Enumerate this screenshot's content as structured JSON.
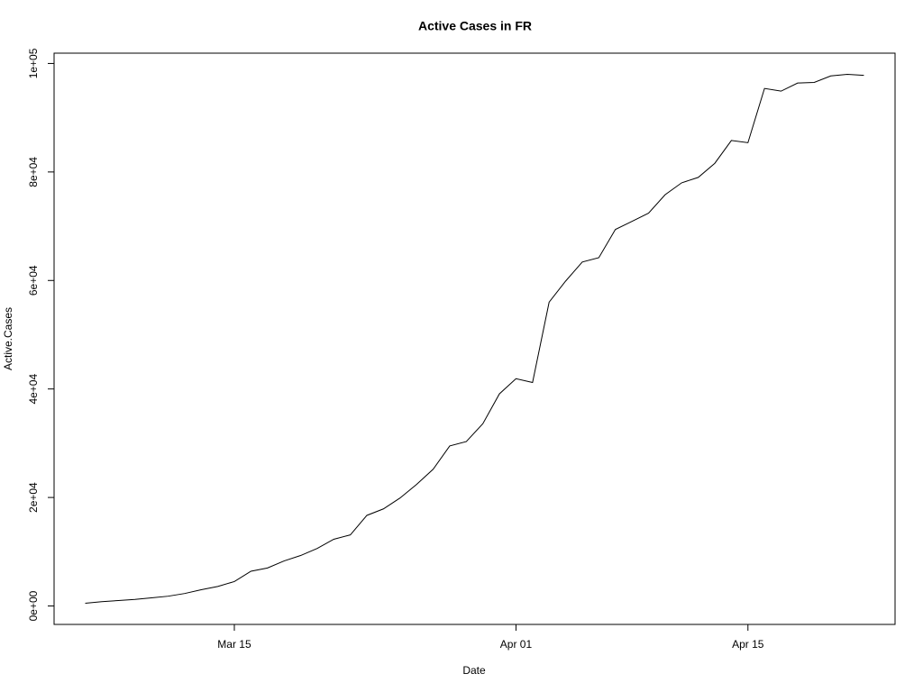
{
  "chart_data": {
    "type": "line",
    "title": "Active Cases in FR",
    "xlabel": "Date",
    "ylabel": "Active.Cases",
    "x": [
      "Mar 06",
      "Mar 07",
      "Mar 08",
      "Mar 09",
      "Mar 10",
      "Mar 11",
      "Mar 12",
      "Mar 13",
      "Mar 14",
      "Mar 15",
      "Mar 16",
      "Mar 17",
      "Mar 18",
      "Mar 19",
      "Mar 20",
      "Mar 21",
      "Mar 22",
      "Mar 23",
      "Mar 24",
      "Mar 25",
      "Mar 26",
      "Mar 27",
      "Mar 28",
      "Mar 29",
      "Mar 30",
      "Mar 31",
      "Apr 01",
      "Apr 02",
      "Apr 03",
      "Apr 04",
      "Apr 05",
      "Apr 06",
      "Apr 07",
      "Apr 08",
      "Apr 09",
      "Apr 10",
      "Apr 11",
      "Apr 12",
      "Apr 13",
      "Apr 14",
      "Apr 15",
      "Apr 16",
      "Apr 17",
      "Apr 18",
      "Apr 19",
      "Apr 20",
      "Apr 21",
      "Apr 22"
    ],
    "series": [
      {
        "name": "Active.Cases",
        "color": "#000000",
        "values": [
          500,
          800,
          1000,
          1200,
          1500,
          1800,
          2300,
          3000,
          3600,
          4500,
          6400,
          7000,
          8300,
          9300,
          10600,
          12300,
          13100,
          16700,
          17900,
          19900,
          22400,
          25200,
          29500,
          30300,
          33600,
          39100,
          41900,
          41200,
          56000,
          59900,
          63400,
          64200,
          69400,
          70900,
          72400,
          75800,
          78000,
          79000,
          81600,
          85800,
          85400,
          95400,
          94900,
          96400,
          96500,
          97700,
          98000,
          97800
        ]
      }
    ],
    "xticks": [
      "Mar 15",
      "Apr 01",
      "Apr 15"
    ],
    "ylim": [
      -3400,
      101900
    ],
    "yticks": [
      {
        "value": 0,
        "label": "0e+00"
      },
      {
        "value": 20000,
        "label": "2e+04"
      },
      {
        "value": 40000,
        "label": "4e+04"
      },
      {
        "value": 60000,
        "label": "6e+04"
      },
      {
        "value": 80000,
        "label": "8e+04"
      },
      {
        "value": 100000,
        "label": "1e+05"
      }
    ]
  }
}
